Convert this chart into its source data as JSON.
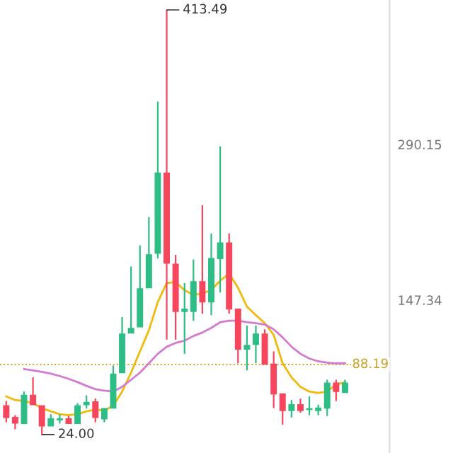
{
  "chart_data": {
    "type": "candlestick",
    "categories": [
      null,
      null,
      null,
      null,
      null,
      null,
      null,
      null,
      null,
      null,
      null,
      null,
      null,
      null,
      null,
      null,
      null,
      null,
      null,
      null,
      null,
      null,
      null,
      null,
      null,
      null,
      null,
      null,
      null,
      null,
      null,
      null,
      null,
      null,
      null,
      null,
      null,
      null,
      null
    ],
    "ohlc": [
      [
        50.4,
        54.7,
        35.2,
        39.6
      ],
      [
        39.6,
        41.7,
        28.8,
        34.4
      ],
      [
        34.0,
        63.4,
        34.0,
        59.9
      ],
      [
        59.9,
        76.4,
        51.3,
        51.3
      ],
      [
        50.4,
        50.4,
        24.0,
        31.8
      ],
      [
        31.8,
        42.6,
        31.8,
        38.3
      ],
      [
        37.4,
        42.6,
        34.0,
        38.3
      ],
      [
        38.3,
        40.9,
        34.0,
        34.0
      ],
      [
        34.0,
        52.6,
        34.0,
        50.4
      ],
      [
        51.3,
        59.9,
        47.8,
        53.4
      ],
      [
        53.9,
        56.9,
        35.2,
        39.6
      ],
      [
        38.3,
        48.2,
        35.2,
        47.8
      ],
      [
        48.2,
        87.2,
        48.2,
        79.4
      ],
      [
        80.7,
        131.7,
        80.7,
        116.2
      ],
      [
        117.0,
        178.1,
        117.0,
        121.4
      ],
      [
        122.7,
        197.5,
        122.7,
        157.7
      ],
      [
        158.6,
        223.5,
        158.6,
        188.9
      ],
      [
        190.2,
        329.5,
        185.4,
        263.8
      ],
      [
        263.8,
        413.49,
        111.0,
        181.1
      ],
      [
        180.2,
        188.9,
        111.0,
        136.9
      ],
      [
        136.9,
        162.9,
        98.0,
        139.1
      ],
      [
        136.9,
        184.6,
        128.3,
        164.2
      ],
      [
        164.2,
        234.3,
        134.8,
        145.6
      ],
      [
        145.6,
        208.4,
        133.5,
        185.4
      ],
      [
        185.4,
        288.4,
        154.3,
        199.7
      ],
      [
        199.7,
        208.4,
        134.8,
        139.1
      ],
      [
        139.1,
        139.1,
        89.3,
        102.3
      ],
      [
        102.3,
        124.0,
        82.8,
        105.8
      ],
      [
        106.7,
        124.0,
        89.3,
        116.2
      ],
      [
        116.2,
        120.5,
        88.5,
        88.5
      ],
      [
        88.5,
        100.2,
        48.2,
        61.2
      ],
      [
        61.2,
        61.2,
        33.1,
        46.0
      ],
      [
        46.0,
        55.6,
        39.6,
        51.3
      ],
      [
        51.3,
        56.9,
        43.9,
        46.0
      ],
      [
        46.9,
        59.0,
        41.7,
        46.9
      ],
      [
        46.0,
        51.3,
        41.7,
        48.2
      ],
      [
        48.2,
        74.2,
        40.9,
        71.2
      ],
      [
        71.2,
        74.2,
        54.7,
        63.4
      ],
      [
        62.5,
        74.2,
        62.5,
        71.2
      ]
    ],
    "colors": [
      "#f6465d",
      "#f6465d",
      "#2ebd85",
      "#f6465d",
      "#f6465d",
      "#2ebd85",
      "#2ebd85",
      "#f6465d",
      "#2ebd85",
      "#2ebd85",
      "#f6465d",
      "#2ebd85",
      "#2ebd85",
      "#2ebd85",
      "#2ebd85",
      "#2ebd85",
      "#2ebd85",
      "#2ebd85",
      "#f6465d",
      "#f6465d",
      "#2ebd85",
      "#2ebd85",
      "#f6465d",
      "#2ebd85",
      "#2ebd85",
      "#f6465d",
      "#f6465d",
      "#2ebd85",
      "#2ebd85",
      "#f6465d",
      "#f6465d",
      "#f6465d",
      "#2ebd85",
      "#f6465d",
      "#2ebd85",
      "#2ebd85",
      "#2ebd85",
      "#f6465d",
      "#2ebd85"
    ],
    "series": [
      {
        "type": "line",
        "color": "#f0b90b",
        "values": [
          59.0,
          55.6,
          54.7,
          52.6,
          48.2,
          45.2,
          42.6,
          41.7,
          42.6,
          45.2,
          46.9,
          46.0,
          50.4,
          63.4,
          80.7,
          100.2,
          119.6,
          145.6,
          162.9,
          163.8,
          156.4,
          152.1,
          153.4,
          156.4,
          165.1,
          171.6,
          158.6,
          141.3,
          133.5,
          126.1,
          115.3,
          89.3,
          76.4,
          67.7,
          63.4,
          62.1,
          63.4,
          69.9,
          72.0
        ]
      },
      {
        "type": "line",
        "color": "#d47ad0",
        "values": [
          null,
          null,
          84.1,
          82.8,
          81.5,
          79.8,
          77.6,
          75.0,
          72.0,
          68.6,
          65.5,
          64.2,
          63.4,
          67.7,
          74.2,
          80.7,
          89.3,
          98.0,
          104.5,
          108.0,
          110.1,
          114.4,
          117.5,
          121.8,
          127.0,
          128.3,
          128.3,
          127.0,
          126.1,
          124.8,
          120.5,
          113.1,
          104.5,
          98.0,
          93.7,
          91.1,
          89.8,
          89.3,
          89.3
        ]
      }
    ],
    "ylim": [
      7,
      422.6
    ],
    "yticks": [
      290.15,
      147.34
    ],
    "tick_labels": "y",
    "grid": false,
    "ref_lines": [
      {
        "axis": "y",
        "value": 88.19,
        "label": "88.19",
        "color": "#c9a227",
        "line_style": "dotted"
      }
    ],
    "annotations": [
      "413.49",
      "24.00"
    ]
  }
}
